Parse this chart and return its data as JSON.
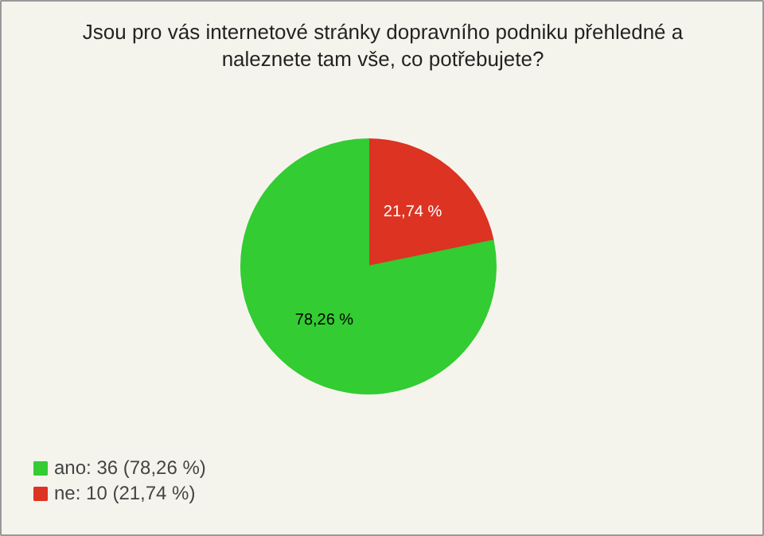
{
  "chart_data": {
    "type": "pie",
    "title": "Jsou pro vás internetové stránky dopravního podniku přehledné a\nnaleznete tam vše, co potřebujete?",
    "categories": [
      "ano: 36 (78,26 %)",
      "ne: 10 (21,74 %)"
    ],
    "values": [
      78.26,
      21.74
    ],
    "colors": [
      "#33cc33",
      "#dd3322"
    ],
    "value_labels": [
      "78,26 %",
      "21,74 %"
    ],
    "legend": "bottom left"
  }
}
